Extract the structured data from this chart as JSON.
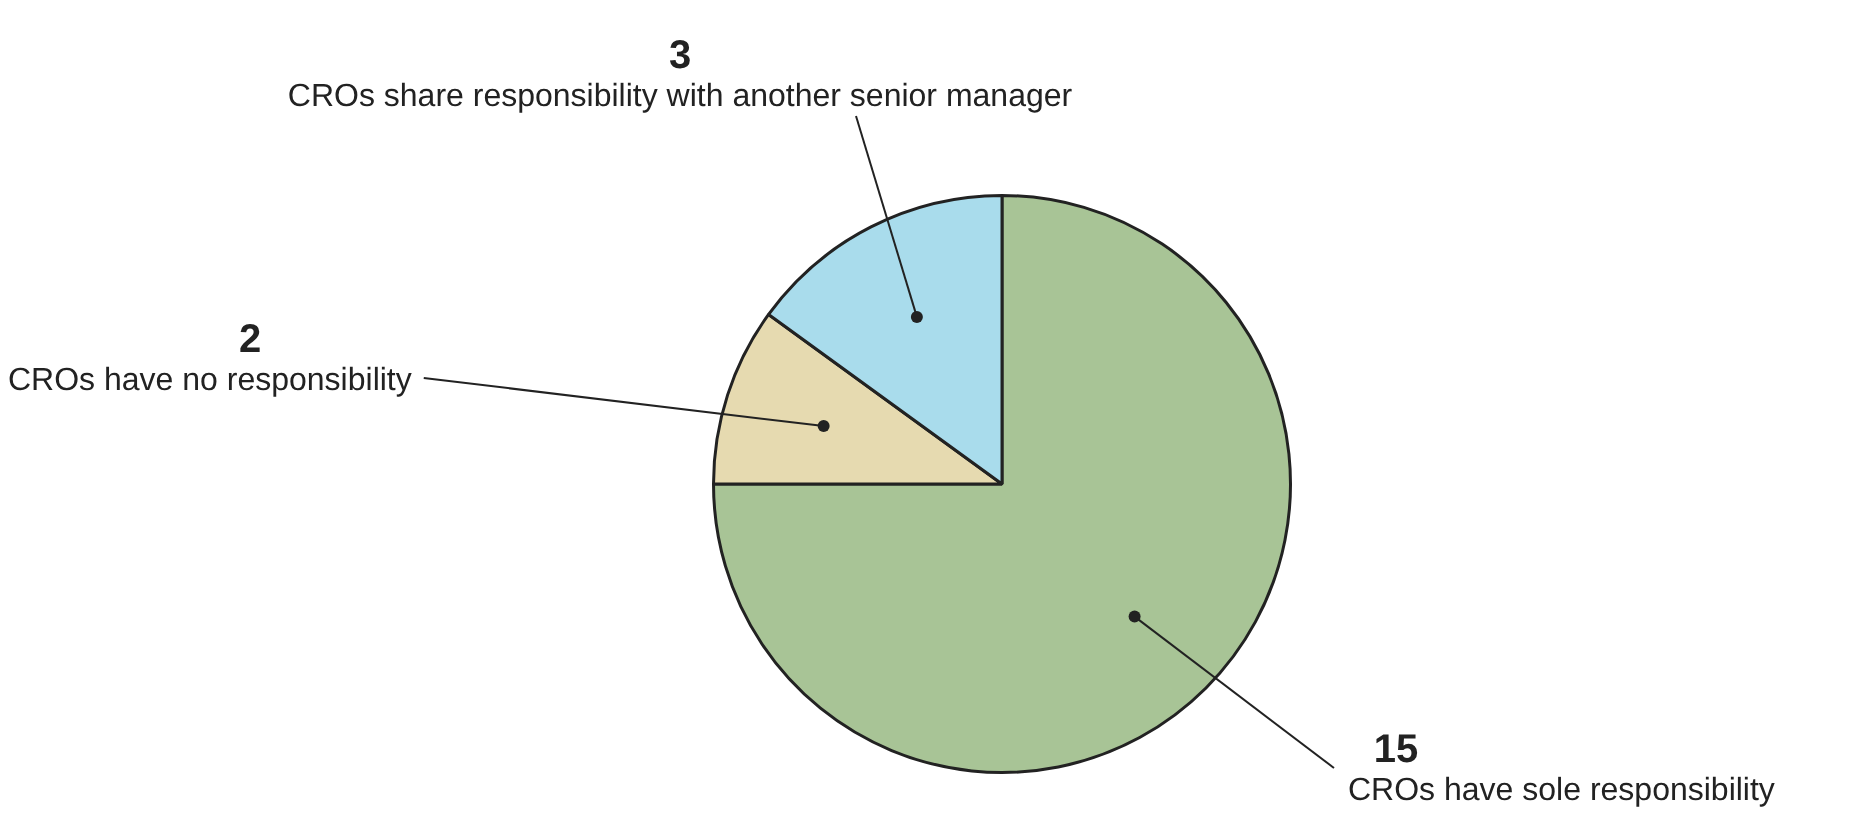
{
  "chart_data": {
    "type": "pie",
    "categories": [
      "CROs have sole responsibility",
      "CROs have no responsibility",
      "CROs share responsibility with another senior manager"
    ],
    "values": [
      15,
      2,
      3
    ],
    "colors": [
      "#a8c496",
      "#e6dab0",
      "#a9dcec"
    ],
    "data_labels": true,
    "legend": false
  }
}
